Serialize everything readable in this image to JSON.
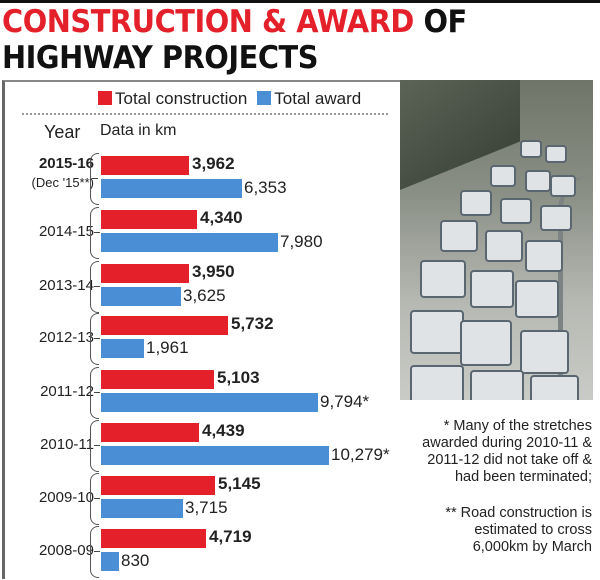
{
  "title": {
    "part_red": "CONSTRUCTION & AWARD",
    "part_black_1": "OF",
    "line2": "HIGHWAY PROJECTS"
  },
  "legend": {
    "construction": "Total construction",
    "award": "Total award"
  },
  "headers": {
    "year": "Year",
    "unit": "Data in km"
  },
  "colors": {
    "construction": "#e4202a",
    "award": "#4a8fd6",
    "title_red": "#e4202a"
  },
  "rows": [
    {
      "year": "2015-16",
      "sub": "(Dec '15**)",
      "construction": "3,962",
      "award": "6,353"
    },
    {
      "year": "2014-15",
      "construction": "4,340",
      "award": "7,980"
    },
    {
      "year": "2013-14",
      "construction": "3,950",
      "award": "3,625"
    },
    {
      "year": "2012-13",
      "construction": "5,732",
      "award": "1,961"
    },
    {
      "year": "2011-12",
      "construction": "5,103",
      "award": "9,794*"
    },
    {
      "year": "2010-11",
      "construction": "4,439",
      "award": "10,279*"
    },
    {
      "year": "2009-10",
      "construction": "5,145",
      "award": "3,715"
    },
    {
      "year": "2008-09",
      "construction": "4,719",
      "award": "830"
    }
  ],
  "notes": {
    "note1": "* Many of the stretches awarded during 2010-11 & 2011-12 did not take off & had been terminated;",
    "note2": "** Road construction is estimated to cross 6,000km by March"
  },
  "photo": {
    "subject": "traffic-jam-photo"
  },
  "chart_data": {
    "type": "bar",
    "orientation": "horizontal",
    "title": "Construction & Award of Highway Projects",
    "unit": "km",
    "xlabel": "Data in km",
    "ylabel": "Year",
    "categories": [
      "2015-16 (Dec '15**)",
      "2014-15",
      "2013-14",
      "2012-13",
      "2011-12",
      "2010-11",
      "2009-10",
      "2008-09"
    ],
    "series": [
      {
        "name": "Total construction",
        "color": "#e4202a",
        "values": [
          3962,
          4340,
          3950,
          5732,
          5103,
          4439,
          5145,
          4719
        ]
      },
      {
        "name": "Total award",
        "color": "#4a8fd6",
        "values": [
          6353,
          7980,
          3625,
          1961,
          9794,
          10279,
          3715,
          830
        ]
      }
    ],
    "annotations": [
      "* Many of the stretches awarded during 2010-11 & 2011-12 did not take off & had been terminated;",
      "** Road construction is estimated to cross 6,000km by March"
    ],
    "legend_position": "top",
    "grid": false
  }
}
